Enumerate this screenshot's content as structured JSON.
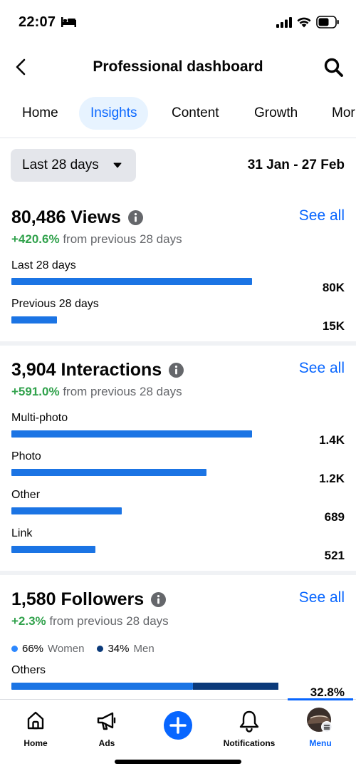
{
  "status_bar": {
    "time": "22:07"
  },
  "header": {
    "title": "Professional dashboard"
  },
  "tabs": [
    {
      "label": "Home"
    },
    {
      "label": "Insights"
    },
    {
      "label": "Content"
    },
    {
      "label": "Growth"
    },
    {
      "label": "Mor"
    }
  ],
  "filter": {
    "range_label": "Last 28 days",
    "date_range": "31 Jan - 27 Feb"
  },
  "views": {
    "title": "80,486 Views",
    "see_all": "See all",
    "change_pct": "+420.6%",
    "change_text": "from previous 28 days",
    "bars": [
      {
        "label": "Last 28 days",
        "value": "80K",
        "fraction": 1.0
      },
      {
        "label": "Previous 28 days",
        "value": "15K",
        "fraction": 0.19
      }
    ]
  },
  "interactions": {
    "title": "3,904 Interactions",
    "see_all": "See all",
    "change_pct": "+591.0%",
    "change_text": "from previous 28 days",
    "bars": [
      {
        "label": "Multi-photo",
        "value": "1.4K",
        "fraction": 1.0
      },
      {
        "label": "Photo",
        "value": "1.2K",
        "fraction": 0.81
      },
      {
        "label": "Other",
        "value": "689",
        "fraction": 0.46
      },
      {
        "label": "Link",
        "value": "521",
        "fraction": 0.35
      }
    ]
  },
  "followers": {
    "title": "1,580 Followers",
    "see_all": "See all",
    "change_pct": "+2.3%",
    "change_text": "from previous 28 days",
    "women_pct": "66%",
    "women_label": "Women",
    "men_pct": "34%",
    "men_label": "Men",
    "bars": [
      {
        "label": "Others",
        "value": "32.8%",
        "women_fraction": 0.68
      }
    ]
  },
  "nav": {
    "items": [
      {
        "label": "Home"
      },
      {
        "label": "Ads"
      },
      {
        "label": ""
      },
      {
        "label": "Notifications"
      },
      {
        "label": "Menu"
      }
    ]
  },
  "colors": {
    "accent": "#0866ff",
    "bar": "#1b74e4",
    "bar_dark": "#0b3a7a",
    "positive": "#31a24c"
  }
}
